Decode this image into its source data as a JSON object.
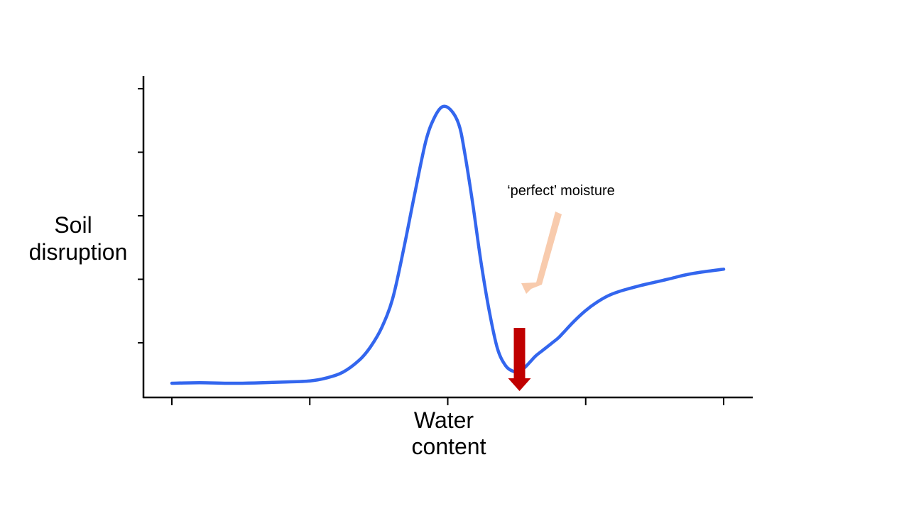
{
  "chart_data": {
    "type": "line",
    "xlabel_lines": [
      "Water",
      "content"
    ],
    "ylabel_lines": [
      "Soil",
      "disruption"
    ],
    "xlim": [
      0,
      100
    ],
    "ylim": [
      0,
      100
    ],
    "grid": false,
    "x_tick_count": 5,
    "y_tick_count": 5,
    "colors": {
      "curve": "#3366ee",
      "optimum_arrow": "#c00000",
      "annotation_arrow": "#f8cbad",
      "axis": "#000000"
    },
    "series": [
      {
        "x": [
          0,
          5,
          10,
          15,
          20,
          25,
          28,
          31,
          34,
          36,
          38,
          40,
          42,
          44,
          46,
          47.5,
          49,
          50.5,
          52,
          53,
          54.5,
          56,
          57.5,
          59,
          60.5,
          62,
          63,
          64,
          65,
          66,
          67,
          68,
          69,
          70,
          71,
          73,
          75,
          77,
          79,
          81,
          83,
          85,
          87,
          90,
          93,
          96,
          100
        ],
        "y": [
          0,
          0.2,
          0,
          0.1,
          0.4,
          0.8,
          1.8,
          3.8,
          8,
          12.5,
          19,
          29,
          46,
          65,
          83,
          91,
          95,
          94,
          89,
          80,
          62,
          42,
          25,
          12,
          6,
          4,
          4,
          5.5,
          7.5,
          9.5,
          11,
          12.5,
          14,
          15.5,
          17.5,
          21.5,
          25,
          27.8,
          30,
          31.5,
          32.6,
          33.6,
          34.5,
          35.8,
          37.2,
          38.2,
          39.2
        ]
      }
    ],
    "optimum_x": 63,
    "annotation": {
      "text": "‘perfect’ moisture"
    }
  }
}
